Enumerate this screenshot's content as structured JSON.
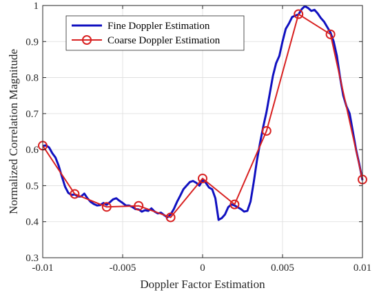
{
  "chart_data": {
    "type": "line",
    "xlabel": "Doppler Factor Estimation",
    "ylabel": "Normalized Correlation Magnitude",
    "xlim": [
      -0.01,
      0.01
    ],
    "ylim": [
      0.3,
      1.0
    ],
    "xticks": [
      -0.01,
      -0.005,
      0,
      0.005,
      0.01
    ],
    "xtick_labels": [
      "-0.01",
      "-0.005",
      "0",
      "0.005",
      "0.01"
    ],
    "yticks": [
      0.3,
      0.4,
      0.5,
      0.6,
      0.7,
      0.8,
      0.9,
      1.0
    ],
    "ytick_labels": [
      "0.3",
      "0.4",
      "0.5",
      "0.6",
      "0.7",
      "0.8",
      "0.9",
      "1"
    ],
    "grid": true,
    "legend_position": "top-left",
    "series": [
      {
        "name": "Fine Doppler Estimation",
        "color": "#1010c0",
        "marker": "none",
        "x": [
          -0.01,
          -0.0098,
          -0.0096,
          -0.0094,
          -0.0092,
          -0.009,
          -0.0088,
          -0.0086,
          -0.0084,
          -0.0082,
          -0.008,
          -0.0078,
          -0.0076,
          -0.0074,
          -0.0072,
          -0.007,
          -0.0068,
          -0.0066,
          -0.0064,
          -0.0062,
          -0.006,
          -0.0058,
          -0.0056,
          -0.0054,
          -0.0052,
          -0.005,
          -0.0048,
          -0.0046,
          -0.0044,
          -0.0042,
          -0.004,
          -0.0038,
          -0.0036,
          -0.0034,
          -0.0032,
          -0.003,
          -0.0028,
          -0.0026,
          -0.0024,
          -0.0022,
          -0.002,
          -0.0018,
          -0.0016,
          -0.0014,
          -0.0012,
          -0.001,
          -0.0008,
          -0.0006,
          -0.0004,
          -0.0002,
          0,
          0.0002,
          0.0004,
          0.0006,
          0.0008,
          0.001,
          0.0012,
          0.0014,
          0.0016,
          0.0018,
          0.002,
          0.0022,
          0.0024,
          0.0026,
          0.0028,
          0.003,
          0.0032,
          0.0034,
          0.0036,
          0.0038,
          0.004,
          0.0042,
          0.0044,
          0.0046,
          0.0048,
          0.005,
          0.0052,
          0.0054,
          0.0056,
          0.0058,
          0.006,
          0.0062,
          0.0064,
          0.0066,
          0.0068,
          0.007,
          0.0072,
          0.0074,
          0.0076,
          0.0078,
          0.008,
          0.0082,
          0.0084,
          0.0086,
          0.0088,
          0.009,
          0.0092,
          0.0094,
          0.0096,
          0.0098,
          0.01
        ],
        "y": [
          0.61,
          0.612,
          0.606,
          0.59,
          0.578,
          0.555,
          0.525,
          0.497,
          0.48,
          0.474,
          0.476,
          0.47,
          0.47,
          0.478,
          0.465,
          0.455,
          0.449,
          0.445,
          0.446,
          0.452,
          0.447,
          0.454,
          0.462,
          0.465,
          0.458,
          0.452,
          0.445,
          0.445,
          0.441,
          0.435,
          0.434,
          0.428,
          0.432,
          0.43,
          0.437,
          0.428,
          0.423,
          0.425,
          0.418,
          0.412,
          0.42,
          0.435,
          0.455,
          0.472,
          0.49,
          0.5,
          0.51,
          0.513,
          0.508,
          0.5,
          0.515,
          0.508,
          0.495,
          0.49,
          0.465,
          0.405,
          0.41,
          0.42,
          0.44,
          0.448,
          0.445,
          0.44,
          0.435,
          0.428,
          0.43,
          0.456,
          0.51,
          0.57,
          0.62,
          0.665,
          0.705,
          0.755,
          0.805,
          0.84,
          0.86,
          0.9,
          0.935,
          0.95,
          0.968,
          0.972,
          0.975,
          0.99,
          0.998,
          0.993,
          0.985,
          0.988,
          0.978,
          0.965,
          0.955,
          0.94,
          0.925,
          0.9,
          0.86,
          0.8,
          0.75,
          0.72,
          0.7,
          0.65,
          0.6,
          0.56,
          0.515
        ]
      },
      {
        "name": "Coarse Doppler Estimation",
        "color": "#d82020",
        "marker": "circle",
        "x": [
          -0.01,
          -0.008,
          -0.006,
          -0.004,
          -0.002,
          0,
          0.002,
          0.004,
          0.006,
          0.008,
          0.01
        ],
        "y": [
          0.611,
          0.477,
          0.441,
          0.444,
          0.412,
          0.52,
          0.448,
          0.652,
          0.976,
          0.92,
          0.517
        ]
      }
    ]
  }
}
